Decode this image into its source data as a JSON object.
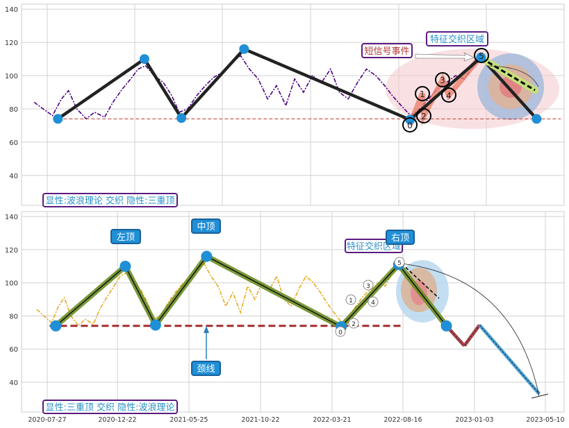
{
  "chart_data": [
    {
      "type": "line",
      "panel": "top",
      "ylim": [
        22,
        143
      ],
      "yticks": [
        40,
        60,
        80,
        100,
        120,
        140
      ],
      "x_tick_dates": [
        "2020-07-27",
        "2020-12-22",
        "2021-05-25",
        "2021-10-22",
        "2022-03-21",
        "2022-08-16"
      ],
      "x_tick_labels_visible": false,
      "grid": true,
      "price_color": "#4b0082",
      "zigzag": {
        "dates": [
          "2020-08-14",
          "2021-01-08",
          "2021-03-14",
          "2021-07-01",
          "2022-04-09",
          "2022-08-07",
          "2022-11-09"
        ],
        "values": [
          74,
          110,
          74.5,
          116,
          73.5,
          111,
          74
        ],
        "color": "#222222",
        "marker_color": "#1f8fd6"
      },
      "neckline": {
        "value": 74,
        "from": "2020-08-14",
        "to": "2022-12-20",
        "color": "#c0392b"
      },
      "wave_labels": [
        "0",
        "1",
        "2",
        "3",
        "4",
        "5"
      ],
      "annotations": {
        "short_signal": "短信号事件",
        "feature_zone": "特征交织区域",
        "caption": "显性:波浪理论 交织 隐性:三重顶"
      }
    },
    {
      "type": "line",
      "panel": "bottom",
      "ylim": [
        22,
        143
      ],
      "yticks": [
        40,
        60,
        80,
        100,
        120,
        140
      ],
      "x_tick_dates": [
        "2020-07-27",
        "2020-12-22",
        "2021-05-25",
        "2021-10-22",
        "2022-03-21",
        "2022-08-16",
        "2023-01-03",
        "2023-05-10"
      ],
      "x_tick_labels": [
        "2020-07-27",
        "2020-12-22",
        "2021-05-25",
        "2021-10-22",
        "2022-03-21",
        "2022-08-16",
        "2023-01-03",
        "2023-05-10"
      ],
      "grid": true,
      "price_color": "#e8a91e",
      "zigzag": {
        "dates": [
          "2020-08-14",
          "2021-01-08",
          "2021-03-14",
          "2021-07-01",
          "2022-04-09",
          "2022-08-07",
          "2022-11-09"
        ],
        "values": [
          74,
          110,
          74.5,
          116,
          73.5,
          111,
          74
        ],
        "color": "#6b8e23"
      },
      "projection": [
        {
          "dates": [
            "2022-11-09",
            "2022-12-14"
          ],
          "values": [
            74,
            62
          ],
          "color": "#b0464f"
        },
        {
          "dates": [
            "2022-12-14",
            "2023-01-12"
          ],
          "values": [
            62,
            74.5
          ],
          "color": "#b0464f"
        },
        {
          "dates": [
            "2023-01-12",
            "2023-04-29"
          ],
          "values": [
            74.5,
            33
          ],
          "color": "#4aa3d8"
        }
      ],
      "neckline": {
        "value": 74,
        "from": "2020-08-01",
        "to": "2022-08-16",
        "color": "#a52a2a"
      },
      "wave_labels": [
        "0",
        "1",
        "2",
        "3",
        "4",
        "5"
      ],
      "annotations": {
        "left_top": "左顶",
        "mid_top": "中顶",
        "right_top": "右顶",
        "neckline": "颈线",
        "feature_zone": "特征交织区域",
        "caption": "显性:三重顶 交织 隐性:波浪理论"
      }
    }
  ],
  "price_series": {
    "dates": [
      "2020-07-05",
      "2020-07-20",
      "2020-08-05",
      "2020-08-20",
      "2020-09-01",
      "2020-09-15",
      "2020-10-01",
      "2020-10-15",
      "2020-11-01",
      "2020-11-15",
      "2020-12-01",
      "2020-12-15",
      "2020-12-28",
      "2021-01-10",
      "2021-01-25",
      "2021-02-10",
      "2021-02-25",
      "2021-03-10",
      "2021-03-25",
      "2021-04-10",
      "2021-04-25",
      "2021-05-10",
      "2021-05-25",
      "2021-06-10",
      "2021-06-25",
      "2021-07-10",
      "2021-07-25",
      "2021-08-10",
      "2021-08-25",
      "2021-09-10",
      "2021-09-25",
      "2021-10-10",
      "2021-10-25",
      "2021-11-10",
      "2021-11-25",
      "2021-12-10",
      "2021-12-25",
      "2022-01-10",
      "2022-01-25",
      "2022-02-10",
      "2022-02-25",
      "2022-03-10",
      "2022-03-25",
      "2022-04-10",
      "2022-04-25",
      "2022-05-10",
      "2022-05-25",
      "2022-06-10",
      "2022-06-25",
      "2022-07-10",
      "2022-07-25",
      "2022-08-07"
    ],
    "values": [
      84,
      80,
      76,
      86,
      91,
      80,
      74,
      78,
      75,
      84,
      92,
      98,
      104,
      106,
      100,
      96,
      88,
      78,
      80,
      88,
      94,
      99,
      102,
      108,
      112,
      104,
      98,
      86,
      94,
      82,
      98,
      90,
      100,
      96,
      104,
      90,
      86,
      96,
      104,
      100,
      94,
      88,
      82,
      76,
      80,
      86,
      92,
      96,
      100,
      98,
      106,
      110
    ]
  }
}
